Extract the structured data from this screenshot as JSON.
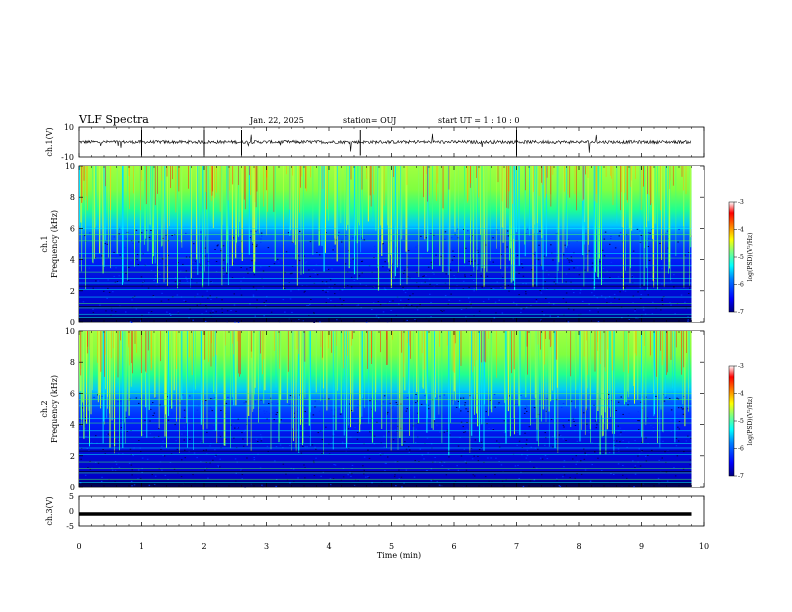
{
  "header": {
    "title": "VLF Spectra",
    "date": "Jan. 22, 2025",
    "station": "station= OUJ",
    "start": "start  UT =   1 : 10 : 0"
  },
  "chart_data": [
    {
      "type": "line",
      "panel": "ch1-waveform",
      "ylabel": "ch.1(V)",
      "ylim": [
        -10,
        10
      ],
      "yticks": [
        "10",
        "-10"
      ],
      "xlim": [
        0,
        10
      ],
      "baseline": 0,
      "color": "#000000"
    },
    {
      "type": "heatmap",
      "panel": "ch1-spectrogram",
      "ylabel_line1": "ch.1",
      "ylabel_line2": "Frequency (kHz)",
      "ylim": [
        0,
        10
      ],
      "yticks": [
        "0",
        "2",
        "4",
        "6",
        "8",
        "10"
      ],
      "xlim": [
        0,
        9.8
      ],
      "colorbar": {
        "label": "log(PSD)(V²/Hz)",
        "range": [
          -7,
          -3
        ],
        "ticks": [
          "-3",
          "-4",
          "-5",
          "-6",
          "-7"
        ],
        "colormap": [
          "#000080",
          "#0000ff",
          "#0080ff",
          "#00ffff",
          "#80ff80",
          "#ffff00",
          "#ff8000",
          "#ff0000",
          "#ffffff"
        ]
      }
    },
    {
      "type": "heatmap",
      "panel": "ch2-spectrogram",
      "ylabel_line1": "ch.2",
      "ylabel_line2": "Frequency (kHz)",
      "ylim": [
        0,
        10
      ],
      "yticks": [
        "0",
        "2",
        "4",
        "6",
        "8",
        "10"
      ],
      "xlim": [
        0,
        9.8
      ],
      "colorbar": {
        "label": "log(PSD)(V²/Hz)",
        "range": [
          -7,
          -3
        ],
        "ticks": [
          "-3",
          "-4",
          "-5",
          "-6",
          "-7"
        ],
        "colormap": [
          "#000080",
          "#0000ff",
          "#0080ff",
          "#00ffff",
          "#80ff80",
          "#ffff00",
          "#ff8000",
          "#ff0000",
          "#ffffff"
        ]
      }
    },
    {
      "type": "line",
      "panel": "ch3-waveform",
      "ylabel": "ch.3(V)",
      "ylim": [
        -5,
        5
      ],
      "yticks": [
        "5",
        "0",
        "-5"
      ],
      "xlim": [
        0,
        10
      ],
      "level": -1,
      "color": "#000000"
    }
  ],
  "xaxis": {
    "label": "Time (min)",
    "ticks": [
      "0",
      "1",
      "2",
      "3",
      "4",
      "5",
      "6",
      "7",
      "8",
      "9",
      "10"
    ],
    "range": [
      0,
      10
    ]
  }
}
